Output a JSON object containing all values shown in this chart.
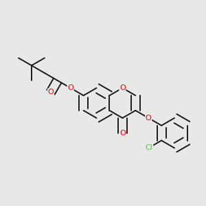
{
  "bg_color": "#e8e8e8",
  "bond_color": "#1a1a1a",
  "bond_width": 1.4,
  "dbo": 0.022,
  "atom_colors": {
    "O": "#ee0000",
    "Cl": "#55bb44",
    "C": "#1a1a1a"
  },
  "font_size": 8.0,
  "fig_width": 3.0,
  "fig_height": 3.0,
  "xlim": [
    0,
    1
  ],
  "ylim": [
    0,
    1
  ]
}
